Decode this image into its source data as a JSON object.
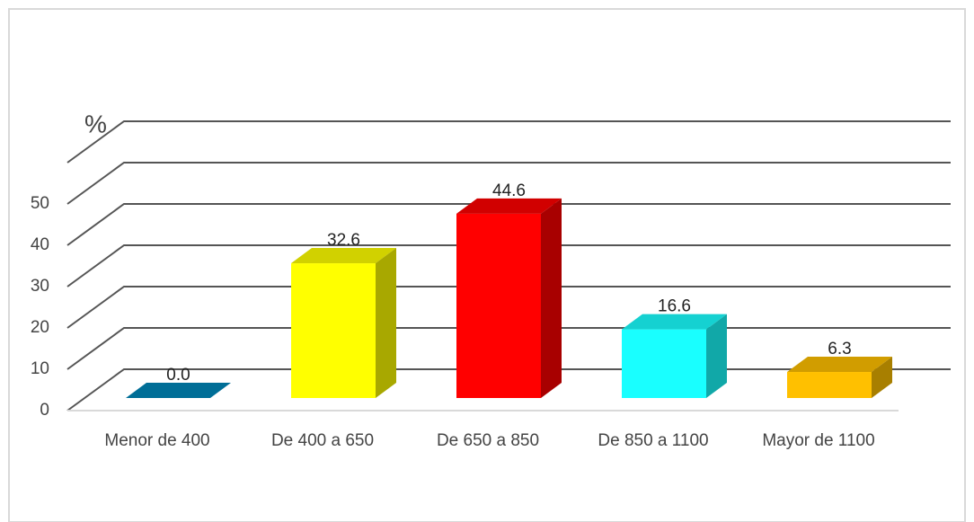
{
  "chart_data": {
    "type": "bar3d",
    "y_axis_label": "%",
    "categories": [
      "Menor de 400",
      "De 400 a 650",
      "De 650 a 850",
      "De 850 a 1100",
      "Mayor de 1100"
    ],
    "values": [
      0.0,
      32.6,
      44.6,
      16.6,
      6.3
    ],
    "value_labels": [
      "0.0",
      "32.6",
      "44.6",
      "16.6",
      "6.3"
    ],
    "colors": [
      "#0086b8",
      "#ffff00",
      "#ff0000",
      "#19ffff",
      "#ffc000"
    ],
    "ylim": [
      0,
      60
    ],
    "yticks": [
      0,
      10,
      20,
      30,
      40,
      50
    ],
    "grid": true
  }
}
